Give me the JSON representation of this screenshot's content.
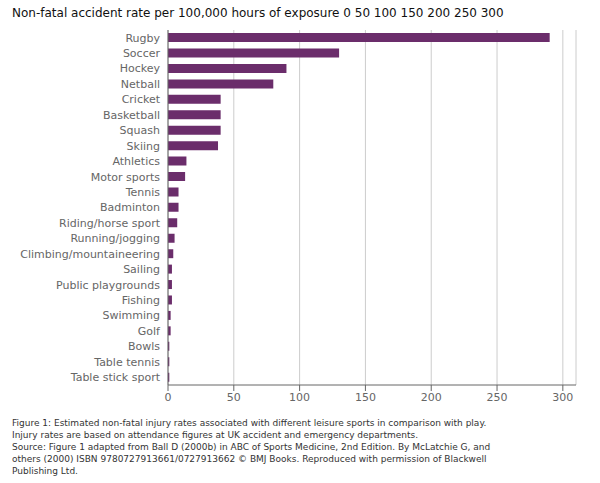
{
  "chart_data": {
    "type": "bar",
    "orientation": "horizontal",
    "title": "Non-fatal accident rate per 100,000 hours of exposure 0 50 100 150 200 250 300",
    "categories": [
      "Table stick sport",
      "Table tennis",
      "Bowls",
      "Golf",
      "Swimming",
      "Fishing",
      "Public playgrounds",
      "Sailing",
      "Climbing/mountaineering",
      "Running/jogging",
      "Riding/horse sport",
      "Badminton",
      "Tennis",
      "Motor sports",
      "Athletics",
      "Skiing",
      "Squash",
      "Basketball",
      "Cricket",
      "Netball",
      "Hockey",
      "Soccer",
      "Rugby"
    ],
    "values": [
      1,
      1,
      1,
      2,
      2,
      3,
      3,
      3,
      4,
      5,
      7,
      8,
      8,
      13,
      14,
      38,
      40,
      40,
      40,
      80,
      90,
      130,
      290
    ],
    "color": "#6b2d6b",
    "xlim": [
      0,
      310
    ],
    "xticks": [
      0,
      50,
      100,
      150,
      200,
      250,
      300
    ],
    "grid": true,
    "annotations": [
      "Figure 1: Estimated non-fatal injury rates associated with different leisure sports in comparison with play.",
      "Injury rates are based on attendance figures at UK accident and emergency departments.",
      "Source: Figure 1 adapted from Ball D (2000b) in ABC of Sports Medicine, 2nd Edition. By McLatchie G, and",
      "others (2000) ISBN 9780727913661/0727913662 © BMJ Books. Reproduced with permission of Blackwell",
      "Publishing Ltd."
    ]
  }
}
